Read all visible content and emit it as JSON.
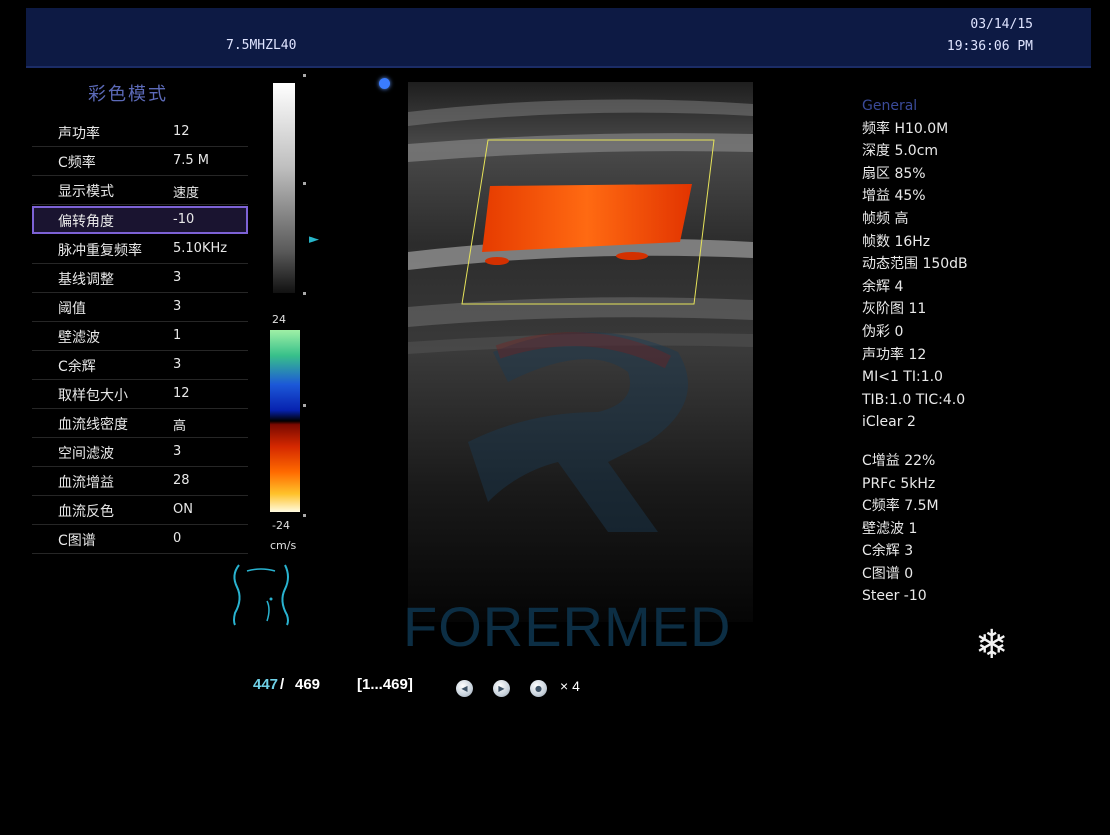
{
  "header": {
    "probe_label": "7.5MHZL40",
    "date": "03/14/15",
    "time": "19:36:06 PM"
  },
  "menu": {
    "title": "彩色模式",
    "items": [
      {
        "label": "声功率",
        "value": "12"
      },
      {
        "label": "C频率",
        "value": "7.5 M"
      },
      {
        "label": "显示模式",
        "value": "速度"
      },
      {
        "label": "偏转角度",
        "value": "-10",
        "selected": true
      },
      {
        "label": "脉冲重复频率",
        "value": "5.10KHz"
      },
      {
        "label": "基线调整",
        "value": "3"
      },
      {
        "label": "阈值",
        "value": "3"
      },
      {
        "label": "壁滤波",
        "value": "1"
      },
      {
        "label": "C余辉",
        "value": "3"
      },
      {
        "label": "取样包大小",
        "value": "12"
      },
      {
        "label": "血流线密度",
        "value": "高"
      },
      {
        "label": "空间滤波",
        "value": "3"
      },
      {
        "label": "血流增益",
        "value": "28"
      },
      {
        "label": "血流反色",
        "value": "ON"
      },
      {
        "label": "C图谱",
        "value": "0"
      }
    ]
  },
  "color_scale": {
    "max": "24",
    "min": "-24",
    "unit": "cm/s"
  },
  "watermark": "FORERMED",
  "params": {
    "heading": "General",
    "general": [
      "频率 H10.0M",
      "深度 5.0cm",
      "扇区 85%",
      "增益 45%",
      "帧频 高",
      "帧数 16Hz",
      "动态范围 150dB",
      "余辉 4",
      "灰阶图 11",
      "伪彩 0",
      "声功率 12",
      "MI<1  TI:1.0",
      "TIB:1.0  TIC:4.0",
      "iClear 2"
    ],
    "color": [
      "C增益 22%",
      "PRFc 5kHz",
      "C频率 7.5M",
      "壁滤波 1",
      "C余辉 3",
      "C图谱 0",
      "Steer -10"
    ]
  },
  "cine": {
    "current": "447",
    "separator": "/",
    "total": "469",
    "range": "[1...469]",
    "speed": "× 4"
  },
  "colors": {
    "header_bg": "#0d1a44",
    "menu_title": "#5c6ab8",
    "selection_border": "#7d62d6",
    "frame_counter": "#6fd0e6",
    "param_heading": "#3a4a98"
  }
}
